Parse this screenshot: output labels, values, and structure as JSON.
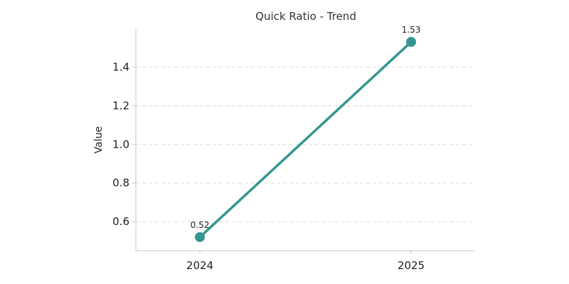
{
  "chart_data": {
    "type": "line",
    "title": "Quick Ratio - Trend",
    "xlabel": "",
    "ylabel": "Value",
    "categories": [
      "2024",
      "2025"
    ],
    "series": [
      {
        "values": [
          0.52,
          1.53
        ],
        "data_labels": [
          "0.52",
          "1.53"
        ],
        "color": "#36968f"
      }
    ],
    "ylim": [
      0.45,
      1.6
    ],
    "yticks": [
      0.6,
      0.8,
      1.0,
      1.2,
      1.4
    ],
    "ytick_labels": [
      "0.6",
      "0.8",
      "1.0",
      "1.2",
      "1.4"
    ],
    "grid": "horizontal dashed",
    "legend": "none"
  }
}
